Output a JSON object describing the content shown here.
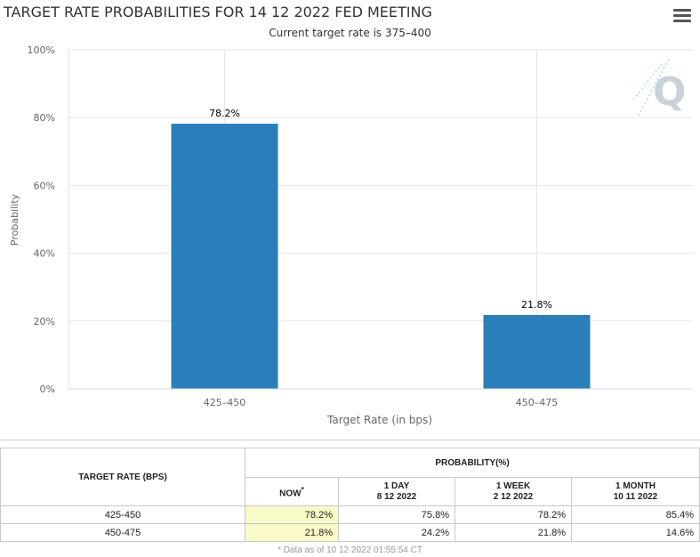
{
  "chart": {
    "title": "TARGET RATE PROBABILITIES FOR 14 12 2022 FED MEETING",
    "subtitle": "Current target rate is 375–400",
    "menu_icon": "hamburger-menu-icon"
  },
  "chart_data": {
    "type": "bar",
    "title": "TARGET RATE PROBABILITIES FOR 14 12 2022 FED MEETING",
    "subtitle": "Current target rate is 375–400",
    "categories": [
      "425–450",
      "450–475"
    ],
    "values": [
      78.2,
      21.8
    ],
    "data_labels": [
      "78.2%",
      "21.8%"
    ],
    "xlabel": "Target Rate (in bps)",
    "ylabel": "Probability",
    "ylim": [
      0,
      100
    ],
    "yticks": [
      0,
      20,
      40,
      60,
      80,
      100
    ],
    "ytick_labels": [
      "0%",
      "20%",
      "40%",
      "60%",
      "80%",
      "100%"
    ],
    "grid": true,
    "bar_color": "#2a7fba"
  },
  "table": {
    "header_target": "TARGET RATE (BPS)",
    "header_probability": "PROBABILITY(%)",
    "col_now": "NOW",
    "col_now_marker": "*",
    "col_1day": "1 DAY",
    "col_1day_date": "8 12 2022",
    "col_1week": "1 WEEK",
    "col_1week_date": "2 12 2022",
    "col_1month": "1 MONTH",
    "col_1month_date": "10 11 2022",
    "rows": [
      {
        "target": "425-450",
        "now": "78.2%",
        "day": "75.8%",
        "week": "78.2%",
        "month": "85.4%"
      },
      {
        "target": "450-475",
        "now": "21.8%",
        "day": "24.2%",
        "week": "21.8%",
        "month": "14.6%"
      }
    ],
    "footnote": "* Data as of 10 12 2022 01:55:54 CT"
  },
  "colors": {
    "bar": "#2a7fba",
    "now_highlight": "#fafac8",
    "watermark": "#c8d8e0"
  }
}
